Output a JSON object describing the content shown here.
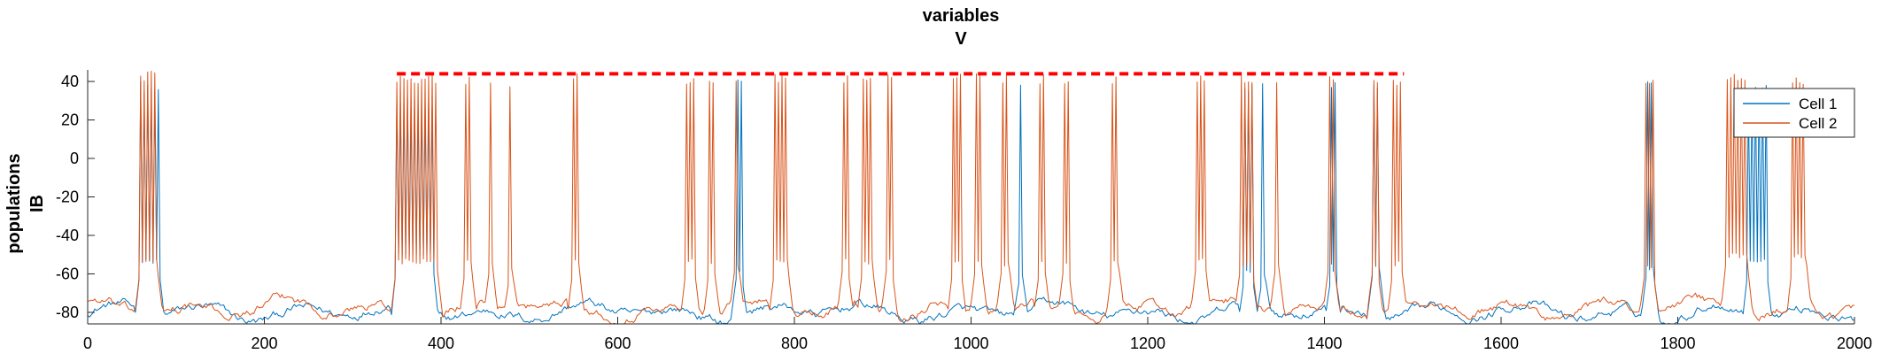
{
  "chart_data": {
    "type": "line",
    "title": "variables",
    "subtitle": "V",
    "ylabel": "populations",
    "ylabel2": "IB",
    "xlim": [
      0,
      2000
    ],
    "ylim": [
      -86,
      46
    ],
    "xticks": [
      "0",
      "200",
      "400",
      "600",
      "800",
      "1000",
      "1200",
      "1400",
      "1600",
      "1800",
      "2000"
    ],
    "yticks": [
      "40",
      "20",
      "0",
      "-20",
      "-40",
      "-60",
      "-80"
    ],
    "legend_position": "top-right",
    "grid": false,
    "series": [
      {
        "name": "Cell 1",
        "color": "#0072BD",
        "baseline": -80,
        "sampling_dt": 2,
        "bursts": [
          {
            "x": [
              60,
              80
            ],
            "peak": 40,
            "plateau": -55
          },
          {
            "x": [
              350,
              390
            ],
            "peak": 32,
            "plateau": -52
          },
          {
            "x": [
              735,
              740
            ],
            "peak": 42,
            "plateau": -60
          },
          {
            "x": [
              1055,
              1058
            ],
            "peak": 42,
            "plateau": -62
          },
          {
            "x": [
              1310,
              1318
            ],
            "peak": 40,
            "plateau": -60
          },
          {
            "x": [
              1330,
              1333
            ],
            "peak": 40,
            "plateau": -62
          },
          {
            "x": [
              1408,
              1412
            ],
            "peak": 40,
            "plateau": -60
          },
          {
            "x": [
              1455,
              1462
            ],
            "peak": 40,
            "plateau": -58
          },
          {
            "x": [
              1765,
              1772
            ],
            "peak": 44,
            "plateau": -58
          },
          {
            "x": [
              1880,
              1900
            ],
            "peak": 38,
            "plateau": -55
          }
        ]
      },
      {
        "name": "Cell 2",
        "color": "#D95319",
        "baseline": -78,
        "sampling_dt": 2,
        "bursts": [
          {
            "x": [
              60,
              78
            ],
            "peak": 46,
            "plateau": -55
          },
          {
            "x": [
              350,
              395
            ],
            "peak": 44,
            "plateau": -55
          },
          {
            "x": [
              428,
              434
            ],
            "peak": 44,
            "plateau": -55
          },
          {
            "x": [
              455,
              458
            ],
            "peak": 42,
            "plateau": -55
          },
          {
            "x": [
              478,
              481
            ],
            "peak": 42,
            "plateau": -60
          },
          {
            "x": [
              550,
              556
            ],
            "peak": 44,
            "plateau": -55
          },
          {
            "x": [
              678,
              686
            ],
            "peak": 44,
            "plateau": -55
          },
          {
            "x": [
              704,
              709
            ],
            "peak": 44,
            "plateau": -56
          },
          {
            "x": [
              733,
              737
            ],
            "peak": 44,
            "plateau": -56
          },
          {
            "x": [
              778,
              792
            ],
            "peak": 44,
            "plateau": -55
          },
          {
            "x": [
              855,
              860
            ],
            "peak": 44,
            "plateau": -55
          },
          {
            "x": [
              878,
              888
            ],
            "peak": 44,
            "plateau": -55
          },
          {
            "x": [
              905,
              910
            ],
            "peak": 44,
            "plateau": -55
          },
          {
            "x": [
              980,
              988
            ],
            "peak": 44,
            "plateau": -55
          },
          {
            "x": [
              1005,
              1012
            ],
            "peak": 44,
            "plateau": -56
          },
          {
            "x": [
              1035,
              1043
            ],
            "peak": 44,
            "plateau": -56
          },
          {
            "x": [
              1078,
              1083
            ],
            "peak": 44,
            "plateau": -56
          },
          {
            "x": [
              1105,
              1110
            ],
            "peak": 44,
            "plateau": -56
          },
          {
            "x": [
              1160,
              1167
            ],
            "peak": 44,
            "plateau": -56
          },
          {
            "x": [
              1255,
              1265
            ],
            "peak": 44,
            "plateau": -55
          },
          {
            "x": [
              1305,
              1318
            ],
            "peak": 44,
            "plateau": -56
          },
          {
            "x": [
              1345,
              1348
            ],
            "peak": 44,
            "plateau": -56
          },
          {
            "x": [
              1405,
              1411
            ],
            "peak": 44,
            "plateau": -56
          },
          {
            "x": [
              1455,
              1460
            ],
            "peak": 44,
            "plateau": -56
          },
          {
            "x": [
              1478,
              1487
            ],
            "peak": 44,
            "plateau": -56
          },
          {
            "x": [
              1763,
              1772
            ],
            "peak": 44,
            "plateau": -58
          },
          {
            "x": [
              1855,
              1878
            ],
            "peak": 44,
            "plateau": -52
          },
          {
            "x": [
              1930,
              1945
            ],
            "peak": 44,
            "plateau": -52
          }
        ]
      }
    ],
    "annotations": [
      {
        "type": "dashed_line",
        "color": "#FF0000",
        "y": 44,
        "x": [
          350,
          1490
        ]
      }
    ]
  }
}
